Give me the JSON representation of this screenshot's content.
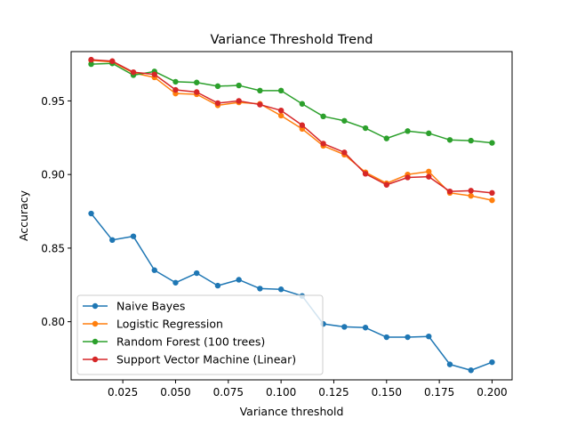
{
  "chart_data": {
    "type": "line",
    "title": "Variance Threshold Trend",
    "xlabel": "Variance threshold",
    "ylabel": "Accuracy",
    "xlim": [
      0.0005,
      0.2095
    ],
    "ylim": [
      0.7605,
      0.9835
    ],
    "xticks": [
      0.025,
      0.05,
      0.075,
      0.1,
      0.125,
      0.15,
      0.175,
      0.2
    ],
    "xtick_labels": [
      "0.025",
      "0.050",
      "0.075",
      "0.100",
      "0.125",
      "0.150",
      "0.175",
      "0.200"
    ],
    "yticks": [
      0.8,
      0.85,
      0.9,
      0.95
    ],
    "ytick_labels": [
      "0.80",
      "0.85",
      "0.90",
      "0.95"
    ],
    "grid": false,
    "legend_position": "lower-left",
    "x": [
      0.01,
      0.02,
      0.03,
      0.04,
      0.05,
      0.06,
      0.07,
      0.08,
      0.09,
      0.1,
      0.11,
      0.12,
      0.13,
      0.14,
      0.15,
      0.16,
      0.17,
      0.18,
      0.19,
      0.2
    ],
    "series": [
      {
        "name": "Naive Bayes",
        "color": "#1f77b4",
        "values": [
          0.8735,
          0.8555,
          0.858,
          0.835,
          0.8265,
          0.833,
          0.8245,
          0.8285,
          0.8225,
          0.822,
          0.8175,
          0.7985,
          0.7965,
          0.796,
          0.7895,
          0.7895,
          0.79,
          0.771,
          0.767,
          0.7725
        ]
      },
      {
        "name": "Logistic Regression",
        "color": "#ff7f0e",
        "values": [
          0.9775,
          0.9765,
          0.969,
          0.966,
          0.955,
          0.9545,
          0.947,
          0.949,
          0.948,
          0.94,
          0.931,
          0.9195,
          0.9135,
          0.9015,
          0.894,
          0.9,
          0.902,
          0.8875,
          0.8855,
          0.8825
        ]
      },
      {
        "name": "Random Forest (100 trees)",
        "color": "#2ca02c",
        "values": [
          0.975,
          0.9755,
          0.9675,
          0.97,
          0.963,
          0.9625,
          0.96,
          0.9605,
          0.957,
          0.957,
          0.948,
          0.9395,
          0.9365,
          0.9315,
          0.9245,
          0.9295,
          0.928,
          0.9235,
          0.923,
          0.9215
        ]
      },
      {
        "name": "Support Vector Machine (Linear)",
        "color": "#d62728",
        "values": [
          0.978,
          0.977,
          0.9695,
          0.968,
          0.9575,
          0.956,
          0.9485,
          0.95,
          0.9475,
          0.9435,
          0.9335,
          0.921,
          0.915,
          0.9005,
          0.893,
          0.898,
          0.8985,
          0.8885,
          0.889,
          0.8875
        ]
      }
    ]
  }
}
